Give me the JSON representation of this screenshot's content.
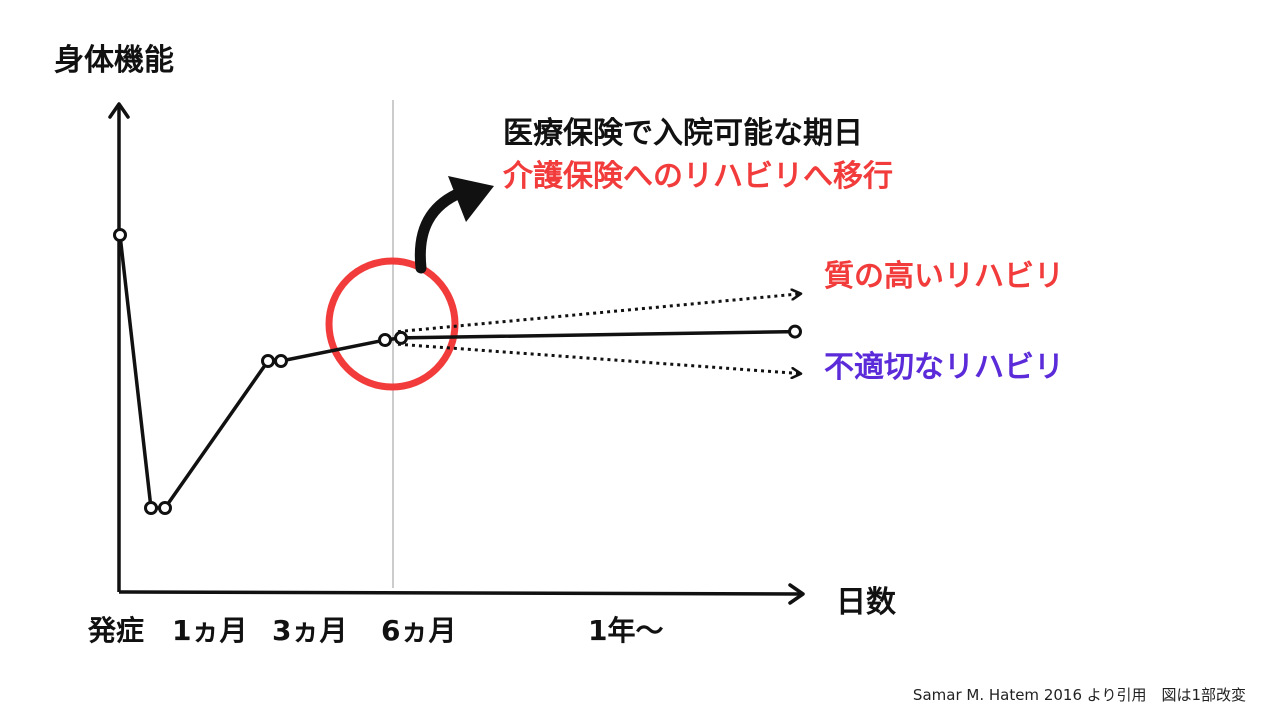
{
  "chart_data": {
    "type": "line",
    "ylabel": "身体機能",
    "xlabel": "日数",
    "x_ticks": [
      "発症",
      "1ヵ月",
      "3ヵ月",
      "6ヵ月",
      "1年〜"
    ],
    "grid": false,
    "series": [
      {
        "values": [
          {
            "x": "発症",
            "y": 85
          },
          {
            "x": "発症+",
            "y": 20
          },
          {
            "x": "発症++",
            "y": 20
          },
          {
            "x": "1ヵ月〜3ヵ月",
            "y": 55
          },
          {
            "x": "3ヵ月",
            "y": 55
          },
          {
            "x": "6ヵ月",
            "y": 60
          },
          {
            "x": "6ヵ月+",
            "y": 60.5
          },
          {
            "x": "1年〜",
            "y": 62
          }
        ]
      },
      {
        "name": "質の高いリハビリ",
        "style": "dotted",
        "color": "#f23c3c",
        "values": [
          {
            "x": "6ヵ月",
            "y": 62
          },
          {
            "x": "1年〜",
            "y": 71
          }
        ]
      },
      {
        "name": "不適切なリハビリ",
        "style": "dotted",
        "color": "#5b2bd9",
        "values": [
          {
            "x": "6ヵ月",
            "y": 59
          },
          {
            "x": "1年〜",
            "y": 52
          }
        ]
      }
    ],
    "annotations": {
      "line1": "医療保険で入院可能な期日",
      "line2": "介護保険へのリハビリへ移行"
    },
    "colors": {
      "axis": "#111111",
      "highlight_circle": "#f23c3c",
      "reference_line": "#999999"
    }
  },
  "credit": "Samar M. Hatem 2016 より引用　図は1部改変"
}
